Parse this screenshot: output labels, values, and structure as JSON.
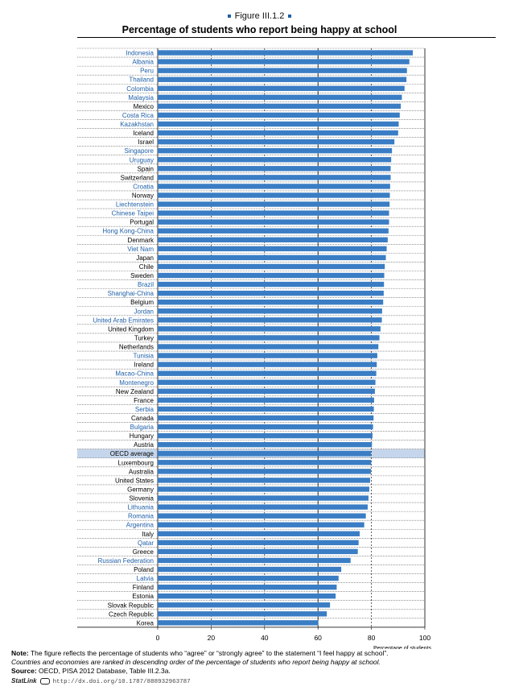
{
  "figure_number": "Figure III.1.2",
  "title": "Percentage of students who report being happy at school",
  "colors": {
    "bar": "#3a7dc4",
    "oecd_band": "#c5d6ec",
    "partner_label": "#1f5fa8",
    "oecd_label": "#000000"
  },
  "chart_data": {
    "type": "bar",
    "orientation": "horizontal",
    "xlim": [
      0,
      100
    ],
    "x_ticks": [
      "0",
      "20",
      "40",
      "60",
      "80",
      "100"
    ],
    "xlabel": "Percentage of students",
    "grid": "dashed vertical lines at 20, 40, 80; solid at 60",
    "categories": [
      {
        "name": "Indonesia",
        "value": 95.5,
        "partner": true
      },
      {
        "name": "Albania",
        "value": 94.2,
        "partner": true
      },
      {
        "name": "Peru",
        "value": 93.3,
        "partner": true
      },
      {
        "name": "Thailand",
        "value": 93.1,
        "partner": true
      },
      {
        "name": "Colombia",
        "value": 92.4,
        "partner": true
      },
      {
        "name": "Malaysia",
        "value": 91.4,
        "partner": true
      },
      {
        "name": "Mexico",
        "value": 91.0,
        "partner": false
      },
      {
        "name": "Costa Rica",
        "value": 90.6,
        "partner": true
      },
      {
        "name": "Kazakhstan",
        "value": 90.2,
        "partner": true
      },
      {
        "name": "Iceland",
        "value": 90.0,
        "partner": false
      },
      {
        "name": "Israel",
        "value": 88.6,
        "partner": false
      },
      {
        "name": "Singapore",
        "value": 87.7,
        "partner": true
      },
      {
        "name": "Uruguay",
        "value": 87.4,
        "partner": true
      },
      {
        "name": "Spain",
        "value": 87.2,
        "partner": false
      },
      {
        "name": "Switzerland",
        "value": 87.2,
        "partner": false
      },
      {
        "name": "Croatia",
        "value": 87.0,
        "partner": true
      },
      {
        "name": "Norway",
        "value": 86.9,
        "partner": false
      },
      {
        "name": "Liechtenstein",
        "value": 86.8,
        "partner": true
      },
      {
        "name": "Chinese Taipei",
        "value": 86.6,
        "partner": true
      },
      {
        "name": "Portugal",
        "value": 86.6,
        "partner": false
      },
      {
        "name": "Hong Kong-China",
        "value": 86.4,
        "partner": true
      },
      {
        "name": "Denmark",
        "value": 86.1,
        "partner": false
      },
      {
        "name": "Viet Nam",
        "value": 85.7,
        "partner": true
      },
      {
        "name": "Japan",
        "value": 85.4,
        "partner": false
      },
      {
        "name": "Chile",
        "value": 85.0,
        "partner": false
      },
      {
        "name": "Sweden",
        "value": 84.8,
        "partner": false
      },
      {
        "name": "Brazil",
        "value": 84.7,
        "partner": true
      },
      {
        "name": "Shanghai-China",
        "value": 84.6,
        "partner": true
      },
      {
        "name": "Belgium",
        "value": 84.4,
        "partner": false
      },
      {
        "name": "Jordan",
        "value": 84.0,
        "partner": true
      },
      {
        "name": "United Arab Emirates",
        "value": 83.9,
        "partner": true
      },
      {
        "name": "United Kingdom",
        "value": 83.4,
        "partner": false
      },
      {
        "name": "Turkey",
        "value": 83.0,
        "partner": false
      },
      {
        "name": "Netherlands",
        "value": 82.6,
        "partner": false
      },
      {
        "name": "Tunisia",
        "value": 82.2,
        "partner": true
      },
      {
        "name": "Ireland",
        "value": 82.0,
        "partner": false
      },
      {
        "name": "Macao-China",
        "value": 81.8,
        "partner": true
      },
      {
        "name": "Montenegro",
        "value": 81.5,
        "partner": true
      },
      {
        "name": "New Zealand",
        "value": 81.3,
        "partner": false
      },
      {
        "name": "France",
        "value": 81.0,
        "partner": false
      },
      {
        "name": "Serbia",
        "value": 80.9,
        "partner": true
      },
      {
        "name": "Canada",
        "value": 80.8,
        "partner": false
      },
      {
        "name": "Bulgaria",
        "value": 80.6,
        "partner": true
      },
      {
        "name": "Hungary",
        "value": 80.4,
        "partner": false
      },
      {
        "name": "Austria",
        "value": 80.2,
        "partner": false
      },
      {
        "name": "OECD average",
        "value": 79.8,
        "partner": false,
        "oecd_average": true
      },
      {
        "name": "Luxembourg",
        "value": 79.9,
        "partner": false
      },
      {
        "name": "Australia",
        "value": 79.8,
        "partner": false
      },
      {
        "name": "United States",
        "value": 79.5,
        "partner": false
      },
      {
        "name": "Germany",
        "value": 79.2,
        "partner": false
      },
      {
        "name": "Slovenia",
        "value": 78.9,
        "partner": false
      },
      {
        "name": "Lithuania",
        "value": 78.6,
        "partner": true
      },
      {
        "name": "Romania",
        "value": 77.9,
        "partner": true
      },
      {
        "name": "Argentina",
        "value": 77.3,
        "partner": true
      },
      {
        "name": "Italy",
        "value": 75.6,
        "partner": false
      },
      {
        "name": "Qatar",
        "value": 75.2,
        "partner": true
      },
      {
        "name": "Greece",
        "value": 74.9,
        "partner": false
      },
      {
        "name": "Russian Federation",
        "value": 72.2,
        "partner": true
      },
      {
        "name": "Poland",
        "value": 68.7,
        "partner": false
      },
      {
        "name": "Latvia",
        "value": 67.7,
        "partner": true
      },
      {
        "name": "Finland",
        "value": 67.0,
        "partner": false
      },
      {
        "name": "Estonia",
        "value": 66.6,
        "partner": false
      },
      {
        "name": "Slovak Republic",
        "value": 64.5,
        "partner": false
      },
      {
        "name": "Czech Republic",
        "value": 63.3,
        "partner": false
      },
      {
        "name": "Korea",
        "value": 60.1,
        "partner": false
      }
    ]
  },
  "notes": {
    "note_label": "Note:",
    "note_text": " The figure reflects the percentage of students who “agree” or “strongly agree” to the statement “I feel happy at school”.",
    "note_line2": "Countries and economies are ranked in descending order of the percentage of students who report being happy at school.",
    "source_label": "Source:",
    "source_text": " OECD, PISA 2012 Database, Table III.2.3a.",
    "statlink_label": "StatLink",
    "statlink_url": "http://dx.doi.org/10.1787/888932963787"
  }
}
